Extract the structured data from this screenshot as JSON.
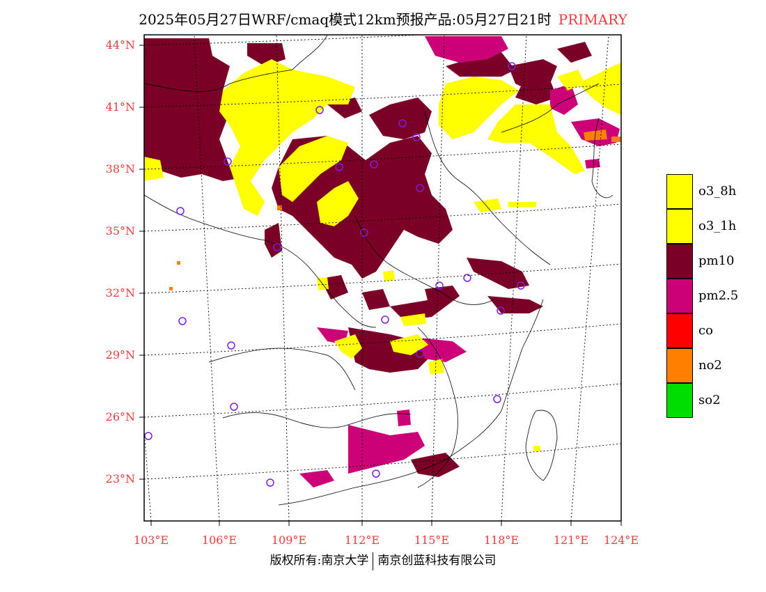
{
  "title": {
    "main": "2025年05月27日WRF/cmaq模式12km预报产品:05月27日21时",
    "tag": "PRIMARY"
  },
  "lat_labels": [
    "44°N",
    "41°N",
    "38°N",
    "35°N",
    "32°N",
    "29°N",
    "26°N",
    "23°N"
  ],
  "lon_labels": [
    "103°E",
    "106°E",
    "109°E",
    "112°E",
    "115°E",
    "118°E",
    "121°E",
    "124°E"
  ],
  "legend": [
    {
      "label": "o3_8h",
      "color": "#ffff00"
    },
    {
      "label": "o3_1h",
      "color": "#ffff00"
    },
    {
      "label": "pm10",
      "color": "#7b0027"
    },
    {
      "label": "pm2.5",
      "color": "#cc0077"
    },
    {
      "label": "co",
      "color": "#ff0000"
    },
    {
      "label": "no2",
      "color": "#ff7f00"
    },
    {
      "label": "so2",
      "color": "#00dd00"
    }
  ],
  "footer": {
    "left": "版权所有:南京大学",
    "right": "南京创蓝科技有限公司"
  },
  "colors": {
    "label_red": "#ee3b3b",
    "station": "#7a1fe0",
    "pm10": "#7b0027",
    "pm25": "#cc0077",
    "o3": "#ffff00",
    "no2": "#ff7f00"
  }
}
